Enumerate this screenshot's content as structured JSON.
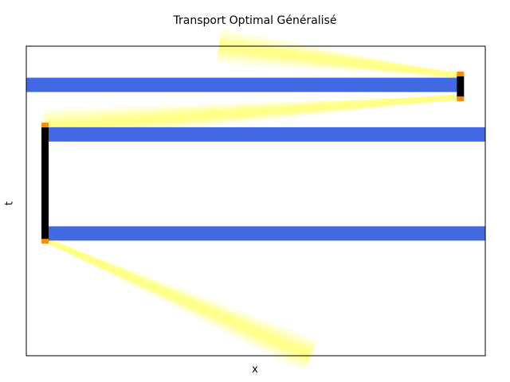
{
  "chart_data": {
    "type": "heatmap",
    "title": "Transport Optimal Généralisé",
    "xlabel": "x",
    "ylabel": "t",
    "xlim": [
      0,
      1
    ],
    "ylim": [
      0,
      1
    ],
    "grid": false,
    "colors": {
      "band": "#4169e1",
      "wall": "#000000",
      "endpoint": "#ff8c00",
      "glow": "#ffff80",
      "frame": "#000000"
    },
    "bands": [
      {
        "t": 0.875,
        "x_start": 0.0,
        "x_end": 0.94
      },
      {
        "t": 0.715,
        "x_start": 0.04,
        "x_end": 1.0
      },
      {
        "t": 0.395,
        "x_start": 0.04,
        "x_end": 1.0
      }
    ],
    "walls": [
      {
        "x": 0.04,
        "t_start": 0.375,
        "t_end": 0.74
      },
      {
        "x": 0.945,
        "t_start": 0.835,
        "t_end": 0.905
      }
    ],
    "beams": [
      {
        "from": [
          0.945,
          0.905
        ],
        "to": [
          0.42,
          1.0
        ]
      },
      {
        "from": [
          0.945,
          0.835
        ],
        "to": [
          0.04,
          0.74
        ]
      },
      {
        "from": [
          0.04,
          0.375
        ],
        "to": [
          0.62,
          0.0
        ]
      }
    ]
  }
}
